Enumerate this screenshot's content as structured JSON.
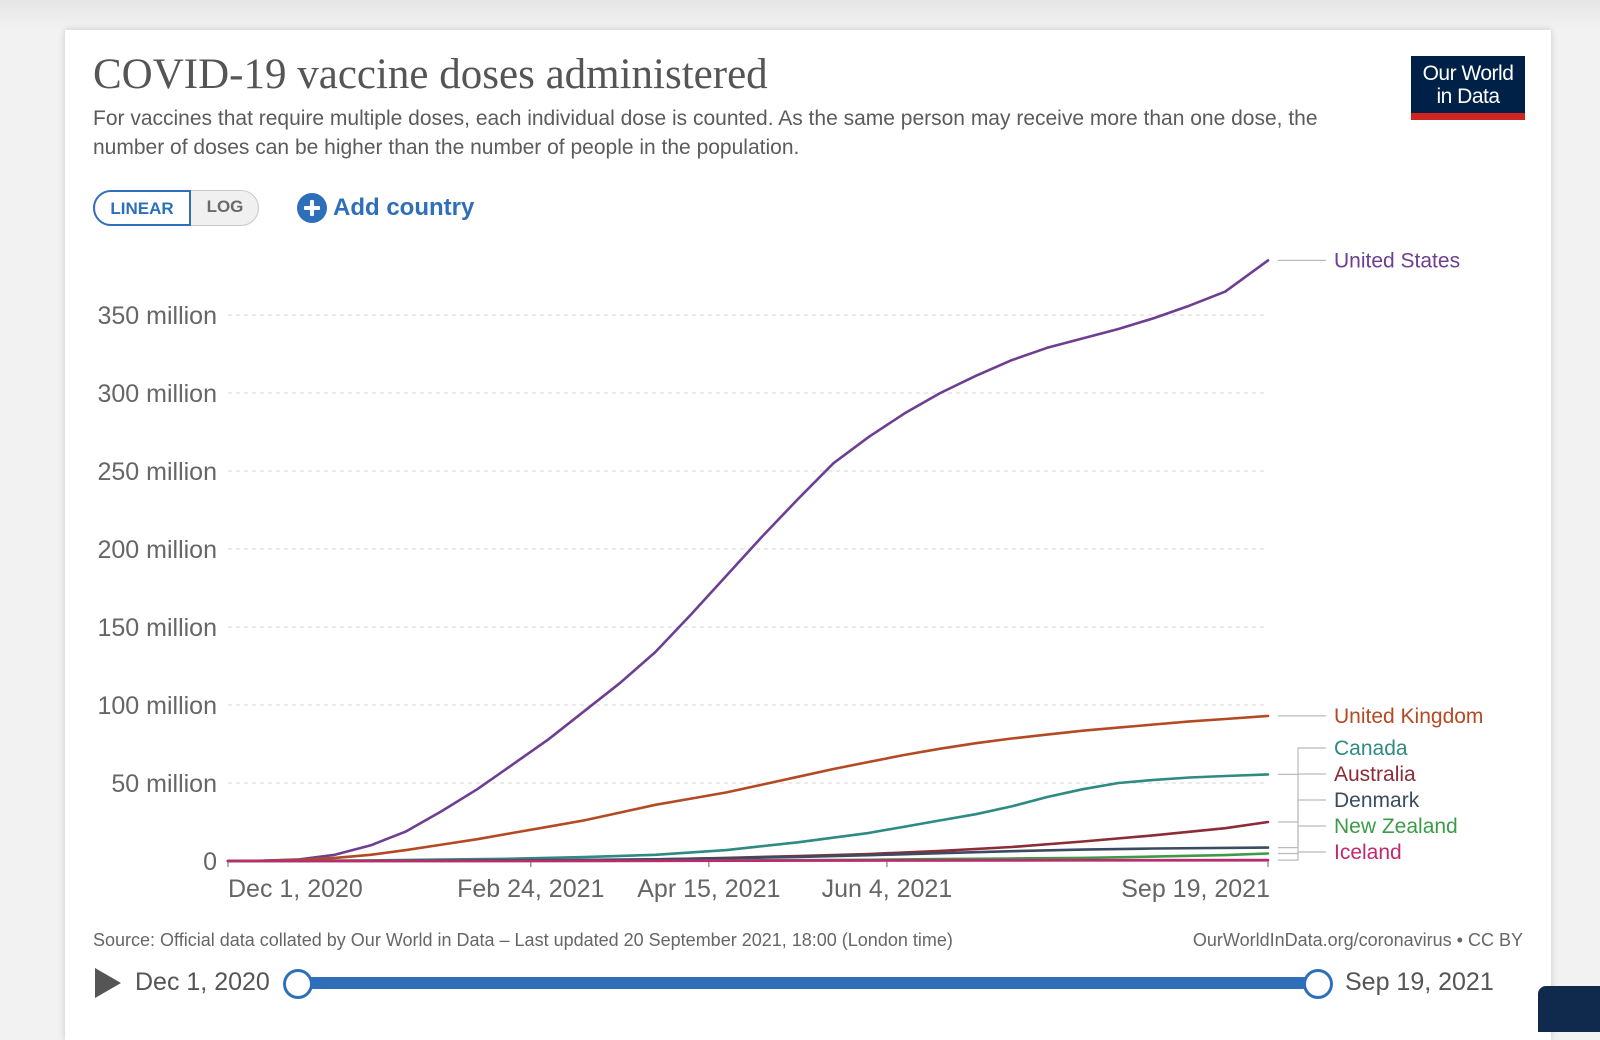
{
  "title": "COVID-19 vaccine doses administered",
  "subtitle": "For vaccines that require multiple doses, each individual dose is counted. As the same person may receive more than one dose, the number of doses can be higher than the number of people in the population.",
  "logo": {
    "line1": "Our World",
    "line2": "in Data"
  },
  "controls": {
    "linear_label": "LINEAR",
    "log_label": "LOG",
    "add_country_label": "Add country"
  },
  "footer": {
    "source": "Source: Official data collated by Our World in Data – Last updated 20 September 2021, 18:00 (London time)",
    "url": "OurWorldInData.org/coronavirus • CC BY"
  },
  "timeline": {
    "start_label": "Dec 1, 2020",
    "end_label": "Sep 19, 2021"
  },
  "colors": {
    "accent": "#2f6fba",
    "logo_bg": "#002147",
    "logo_bar": "#ce261e"
  },
  "chart_data": {
    "type": "line",
    "title": "COVID-19 vaccine doses administered",
    "xlabel": "",
    "ylabel": "",
    "x_unit": "days since Dec 1, 2020",
    "xlim": [
      0,
      292
    ],
    "ylim": [
      0,
      350000000
    ],
    "y_ticks": [
      0,
      50000000,
      100000000,
      150000000,
      200000000,
      250000000,
      300000000,
      350000000
    ],
    "y_tick_labels": [
      "0",
      "50 million",
      "100 million",
      "150 million",
      "200 million",
      "250 million",
      "300 million",
      "350 million"
    ],
    "x_ticks": [
      0,
      85,
      135,
      185,
      292
    ],
    "x_tick_labels": [
      "Dec 1, 2020",
      "Feb 24, 2021",
      "Apr 15, 2021",
      "Jun 4, 2021",
      "Sep 19, 2021"
    ],
    "grid": true,
    "legend": "right",
    "series": [
      {
        "name": "United States",
        "color": "#6d3e91",
        "x": [
          0,
          10,
          20,
          30,
          40,
          50,
          60,
          70,
          80,
          90,
          100,
          110,
          120,
          130,
          140,
          150,
          160,
          170,
          180,
          190,
          200,
          210,
          220,
          230,
          240,
          250,
          260,
          270,
          280,
          292
        ],
        "y": [
          0,
          200000,
          1000000,
          4000000,
          10000000,
          19000000,
          32000000,
          46000000,
          62000000,
          78000000,
          96000000,
          114000000,
          134000000,
          158000000,
          183000000,
          208000000,
          232000000,
          255000000,
          272000000,
          287000000,
          300000000,
          311000000,
          321000000,
          329000000,
          335000000,
          341000000,
          348000000,
          356000000,
          365000000,
          385000000
        ]
      },
      {
        "name": "United Kingdom",
        "color": "#b44a23",
        "x": [
          0,
          10,
          20,
          30,
          40,
          50,
          60,
          70,
          80,
          90,
          100,
          110,
          120,
          130,
          140,
          150,
          160,
          170,
          180,
          190,
          200,
          210,
          220,
          230,
          240,
          250,
          260,
          270,
          280,
          292
        ],
        "y": [
          0,
          200000,
          800000,
          2000000,
          4000000,
          7000000,
          10500000,
          14000000,
          18000000,
          22000000,
          26000000,
          31000000,
          36000000,
          40000000,
          44000000,
          49000000,
          54000000,
          59000000,
          63500000,
          68000000,
          72000000,
          75500000,
          78500000,
          81000000,
          83500000,
          85500000,
          87500000,
          89500000,
          91000000,
          93000000
        ]
      },
      {
        "name": "Canada",
        "color": "#2e8a82",
        "x": [
          0,
          20,
          40,
          60,
          80,
          100,
          120,
          140,
          160,
          180,
          200,
          210,
          220,
          230,
          240,
          250,
          260,
          270,
          280,
          292
        ],
        "y": [
          0,
          100000,
          400000,
          900000,
          1500000,
          2500000,
          4000000,
          7000000,
          12000000,
          18000000,
          26000000,
          30000000,
          35000000,
          41000000,
          46000000,
          50000000,
          52000000,
          53500000,
          54500000,
          55500000
        ]
      },
      {
        "name": "Australia",
        "color": "#8b2c36",
        "x": [
          0,
          60,
          80,
          100,
          120,
          140,
          160,
          180,
          200,
          220,
          240,
          260,
          280,
          292
        ],
        "y": [
          0,
          0,
          100000,
          400000,
          1000000,
          2000000,
          3200000,
          4500000,
          6500000,
          9000000,
          12500000,
          16500000,
          21000000,
          25000000
        ]
      },
      {
        "name": "Denmark",
        "color": "#3a4c60",
        "x": [
          0,
          20,
          40,
          60,
          80,
          100,
          120,
          140,
          160,
          180,
          200,
          220,
          240,
          260,
          292
        ],
        "y": [
          0,
          20000,
          100000,
          250000,
          450000,
          700000,
          1100000,
          1700000,
          2600000,
          3700000,
          5000000,
          6300000,
          7300000,
          8000000,
          8600000
        ]
      },
      {
        "name": "New Zealand",
        "color": "#3d9b48",
        "x": [
          0,
          80,
          100,
          120,
          140,
          160,
          180,
          200,
          220,
          240,
          260,
          280,
          292
        ],
        "y": [
          0,
          0,
          50000,
          150000,
          300000,
          500000,
          800000,
          1200000,
          1600000,
          2000000,
          2800000,
          3800000,
          4800000
        ]
      },
      {
        "name": "Iceland",
        "color": "#c0286f",
        "x": [
          0,
          40,
          80,
          120,
          160,
          200,
          240,
          292
        ],
        "y": [
          0,
          10000,
          40000,
          100000,
          250000,
          400000,
          500000,
          560000
        ]
      }
    ]
  }
}
